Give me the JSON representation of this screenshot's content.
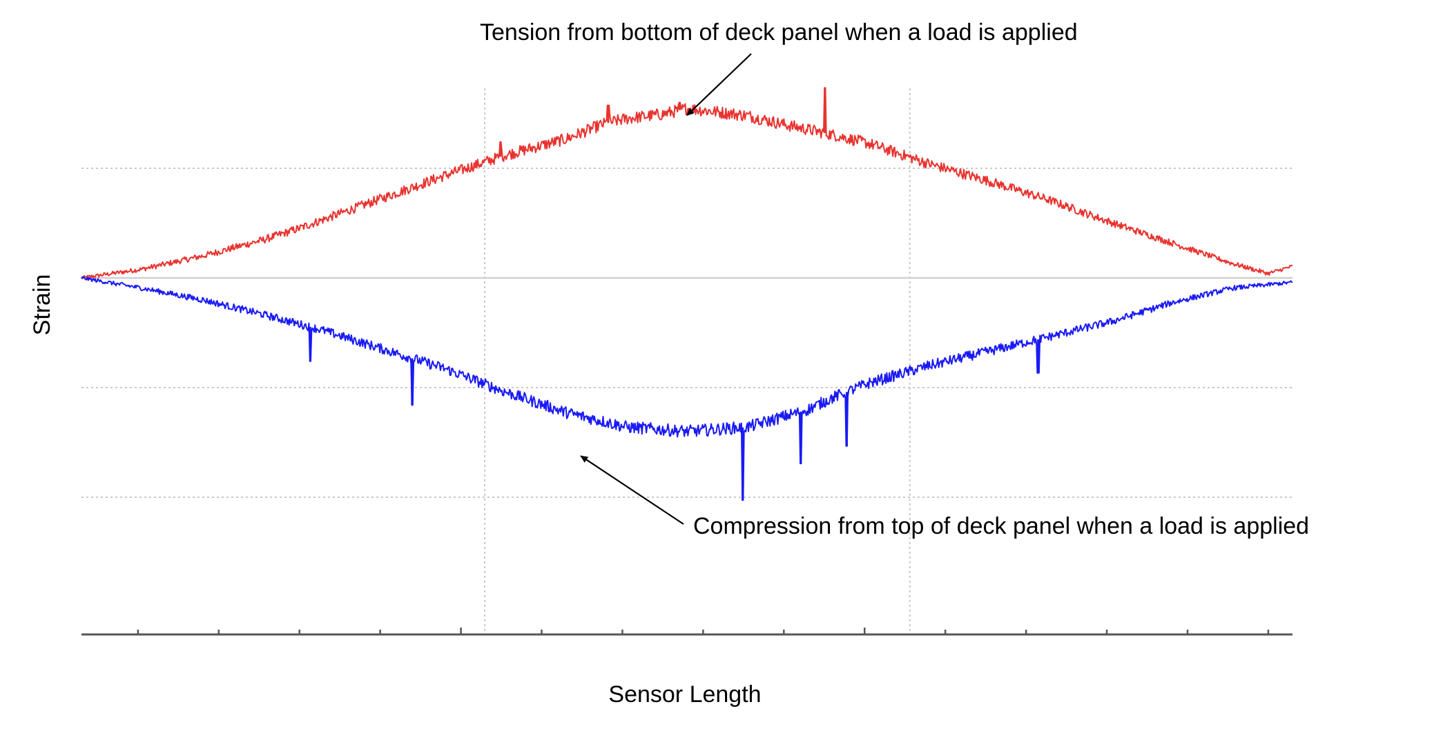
{
  "chart_data": {
    "type": "line",
    "title": "",
    "xlabel": "Sensor Length",
    "ylabel": "Strain",
    "xlim": [
      0,
      100
    ],
    "ylim": [
      -1.24,
      1.24
    ],
    "grid": true,
    "zero_line": true,
    "x_ticks_minor_count": 15,
    "annotations": [
      {
        "text": "Tension from bottom of deck panel when a load is applied",
        "series": "tension",
        "target_x": 50,
        "target_y": 1.15
      },
      {
        "text": "Compression  from top of deck panel when a load is applied",
        "series": "compression",
        "target_x": 41,
        "target_y": -1.18
      }
    ],
    "series": [
      {
        "id": "tension",
        "color": "#e8332f",
        "x": [
          0,
          5,
          10,
          15,
          18,
          20,
          25,
          30,
          34.6,
          35,
          40,
          43,
          45,
          48,
          50,
          52,
          55,
          58,
          61.5,
          62,
          65,
          70,
          75,
          80,
          85,
          90,
          95,
          98,
          100
        ],
        "y": [
          0.0,
          0.06,
          0.15,
          0.26,
          0.34,
          0.4,
          0.55,
          0.7,
          0.86,
          0.84,
          0.95,
          1.05,
          1.09,
          1.12,
          1.16,
          1.14,
          1.11,
          1.05,
          1.3,
          0.98,
          0.92,
          0.78,
          0.66,
          0.53,
          0.38,
          0.24,
          0.1,
          0.03,
          0.08
        ],
        "spikes": [
          {
            "x": 34.6,
            "y": 0.93
          },
          {
            "x": 43.5,
            "y": 1.18
          },
          {
            "x": 49.4,
            "y": 1.2
          },
          {
            "x": 61.4,
            "y": 1.3
          }
        ]
      },
      {
        "id": "compression",
        "color": "#1a1af5",
        "x": [
          0,
          5,
          10,
          15,
          20,
          25,
          30,
          35,
          40,
          45,
          50,
          55,
          60,
          62,
          65,
          70,
          75,
          80,
          85,
          90,
          95,
          100
        ],
        "y": [
          0.0,
          -0.07,
          -0.15,
          -0.25,
          -0.36,
          -0.49,
          -0.62,
          -0.78,
          -0.92,
          -1.02,
          -1.05,
          -1.02,
          -0.9,
          -0.82,
          -0.72,
          -0.6,
          -0.5,
          -0.4,
          -0.3,
          -0.17,
          -0.07,
          -0.03
        ],
        "spikes": [
          {
            "x": 18.9,
            "y": -0.57
          },
          {
            "x": 27.3,
            "y": -0.87
          },
          {
            "x": 54.6,
            "y": -1.52
          },
          {
            "x": 59.4,
            "y": -1.27
          },
          {
            "x": 63.2,
            "y": -1.15
          },
          {
            "x": 79.0,
            "y": -0.65
          }
        ]
      }
    ]
  }
}
